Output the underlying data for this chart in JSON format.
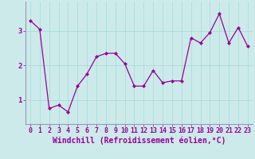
{
  "x": [
    0,
    1,
    2,
    3,
    4,
    5,
    6,
    7,
    8,
    9,
    10,
    11,
    12,
    13,
    14,
    15,
    16,
    17,
    18,
    19,
    20,
    21,
    22,
    23
  ],
  "y": [
    3.3,
    3.05,
    0.75,
    0.85,
    0.65,
    1.4,
    1.75,
    2.25,
    2.35,
    2.35,
    2.05,
    1.4,
    1.4,
    1.85,
    1.5,
    1.55,
    1.55,
    2.8,
    2.65,
    2.95,
    3.5,
    2.65,
    3.1,
    2.55
  ],
  "line_color": "#990099",
  "marker": "D",
  "marker_size": 2,
  "bg_color": "#cceaea",
  "grid_color": "#aadddd",
  "xlabel": "Windchill (Refroidissement éolien,°C)",
  "xlabel_fontsize": 7,
  "tick_fontsize": 6,
  "yticks": [
    1,
    2,
    3
  ],
  "xtick_labels": [
    "0",
    "1",
    "2",
    "3",
    "4",
    "5",
    "6",
    "7",
    "8",
    "9",
    "10",
    "11",
    "12",
    "13",
    "14",
    "15",
    "16",
    "17",
    "18",
    "19",
    "20",
    "21",
    "22",
    "23"
  ],
  "ylim": [
    0.3,
    3.85
  ],
  "xlim": [
    -0.5,
    23.5
  ]
}
